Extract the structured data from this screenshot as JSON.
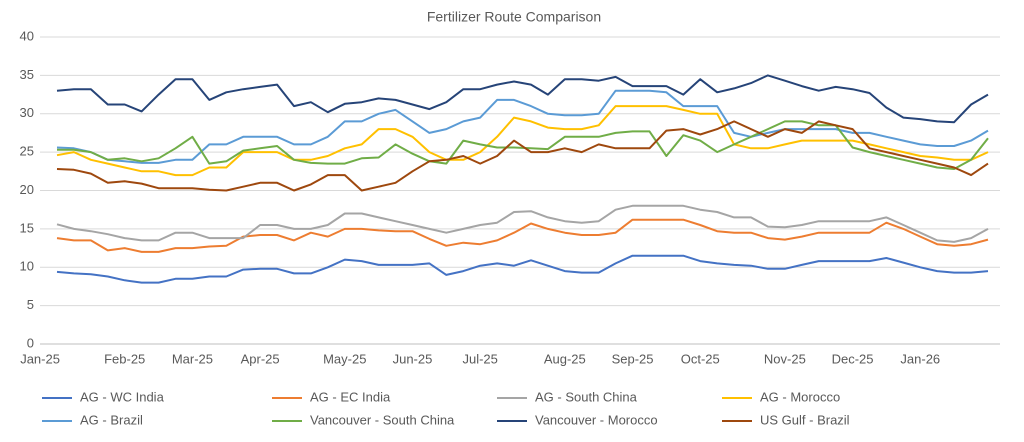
{
  "chart_data": {
    "type": "line",
    "title": "Fertilizer Route Comparison",
    "categories": [
      "Jan-25",
      null,
      null,
      null,
      null,
      "Feb-25",
      null,
      null,
      null,
      "Mar-25",
      null,
      null,
      null,
      "Apr-25",
      null,
      null,
      null,
      null,
      "May-25",
      null,
      null,
      null,
      "Jun-25",
      null,
      null,
      null,
      "Jul-25",
      null,
      null,
      null,
      null,
      "Aug-25",
      null,
      null,
      null,
      "Sep-25",
      null,
      null,
      null,
      "Oct-25",
      null,
      null,
      null,
      null,
      "Nov-25",
      null,
      null,
      null,
      "Dec-25",
      null,
      null,
      null,
      "Jan-26",
      null,
      null,
      null
    ],
    "ylim": [
      0,
      40
    ],
    "yticks": [
      0,
      5,
      10,
      15,
      20,
      25,
      30,
      35,
      40
    ],
    "grid": true,
    "series": [
      {
        "name": "AG - WC India",
        "color": "#4472c4",
        "values": [
          9.4,
          9.2,
          9.1,
          8.8,
          8.3,
          8,
          8,
          8.5,
          8.5,
          8.8,
          8.8,
          9.7,
          9.8,
          9.8,
          9.2,
          9.2,
          10,
          11,
          10.8,
          10.3,
          10.3,
          10.3,
          10.5,
          9,
          9.5,
          10.2,
          10.5,
          10.2,
          10.9,
          10.2,
          9.5,
          9.3,
          9.3,
          10.5,
          11.5,
          11.5,
          11.5,
          11.5,
          10.8,
          10.5,
          10.3,
          10.2,
          9.8,
          9.8,
          10.3,
          10.8,
          10.8,
          10.8,
          10.8,
          11.2,
          10.6,
          10,
          9.5,
          9.3,
          9.3,
          9.5
        ]
      },
      {
        "name": "AG - EC India",
        "color": "#ed7d31",
        "values": [
          13.8,
          13.5,
          13.5,
          12.2,
          12.5,
          12,
          12,
          12.5,
          12.5,
          12.7,
          12.8,
          14,
          14.2,
          14.2,
          13.5,
          14.5,
          14,
          15,
          15,
          14.8,
          14.7,
          14.7,
          13.7,
          12.8,
          13.2,
          13,
          13.5,
          14.5,
          15.7,
          15,
          14.5,
          14.2,
          14.2,
          14.5,
          16.2,
          16.2,
          16.2,
          16.2,
          15.5,
          14.7,
          14.5,
          14.5,
          13.8,
          13.6,
          14,
          14.5,
          14.5,
          14.5,
          14.5,
          15.8,
          15,
          14,
          13,
          12.8,
          13,
          13.6
        ]
      },
      {
        "name": "AG - South China",
        "color": "#a5a5a5",
        "values": [
          15.6,
          15,
          14.7,
          14.3,
          13.8,
          13.5,
          13.5,
          14.5,
          14.5,
          13.8,
          13.8,
          13.8,
          15.5,
          15.5,
          15,
          15,
          15.5,
          17,
          17,
          16.5,
          16,
          15.5,
          15,
          14.5,
          15,
          15.5,
          15.8,
          17.2,
          17.3,
          16.5,
          16,
          15.8,
          16,
          17.5,
          18,
          18,
          18,
          18,
          17.5,
          17.2,
          16.5,
          16.5,
          15.3,
          15.2,
          15.5,
          16,
          16,
          16,
          16,
          16.5,
          15.5,
          14.5,
          13.5,
          13.3,
          13.8,
          15
        ]
      },
      {
        "name": "AG - Morocco",
        "color": "#ffc000",
        "values": [
          24.6,
          25,
          24,
          23.5,
          23,
          22.5,
          22.5,
          22,
          22,
          23,
          23,
          25,
          25,
          25,
          24,
          24,
          24.5,
          25.5,
          26,
          28,
          28,
          27,
          25,
          24,
          24,
          25,
          27,
          29.5,
          29,
          28.2,
          28,
          28,
          28.5,
          31,
          31,
          31,
          31,
          30.5,
          30,
          30,
          26,
          25.5,
          25.5,
          26,
          26.5,
          26.5,
          26.5,
          26.5,
          26,
          25.5,
          25,
          24.5,
          24.3,
          24,
          24,
          25
        ]
      },
      {
        "name": "AG - Brazil",
        "color": "#5b9bd5",
        "values": [
          25.6,
          25.5,
          25,
          24,
          23.8,
          23.6,
          23.6,
          24,
          24,
          26,
          26,
          27,
          27,
          27,
          26,
          26,
          27,
          29,
          29,
          30,
          30.5,
          29,
          27.5,
          28,
          29,
          29.5,
          31.8,
          31.8,
          31,
          30,
          29.8,
          29.8,
          30,
          33,
          33,
          33,
          32.8,
          31,
          31,
          31,
          27.5,
          27,
          27.5,
          28,
          28,
          28,
          28,
          27.5,
          27.5,
          27,
          26.5,
          26,
          25.8,
          25.8,
          26.5,
          27.8
        ]
      },
      {
        "name": "Vancouver - South China",
        "color": "#70ad47",
        "values": [
          25.3,
          25.3,
          25,
          24,
          24.2,
          23.8,
          24.2,
          25.5,
          27,
          23.5,
          23.8,
          25.2,
          25.5,
          25.8,
          24,
          23.6,
          23.5,
          23.5,
          24.2,
          24.3,
          26,
          24.8,
          23.8,
          23.5,
          26.5,
          26,
          25.6,
          25.6,
          25.5,
          25.4,
          27,
          27,
          27,
          27.5,
          27.7,
          27.7,
          24.5,
          27.2,
          26.5,
          25,
          26,
          27,
          28,
          29,
          29,
          28.5,
          28.5,
          25.6,
          25,
          24.5,
          24,
          23.5,
          23,
          22.8,
          24,
          26.8
        ]
      },
      {
        "name": "Vancouver - Morocco",
        "color": "#264478",
        "values": [
          33,
          33.2,
          33.2,
          31.2,
          31.2,
          30.3,
          32.5,
          34.5,
          34.5,
          31.8,
          32.8,
          33.2,
          33.5,
          33.8,
          31,
          31.5,
          30.2,
          31.3,
          31.5,
          32,
          31.8,
          31.2,
          30.6,
          31.5,
          33.2,
          33.2,
          33.8,
          34.2,
          33.8,
          32.5,
          34.5,
          34.5,
          34.3,
          34.8,
          33.6,
          33.6,
          33.6,
          32.5,
          34.5,
          32.8,
          33.3,
          34,
          35,
          34.3,
          33.6,
          33,
          33.5,
          33.2,
          32.7,
          30.8,
          29.5,
          29.3,
          29,
          28.9,
          31.2,
          32.5
        ]
      },
      {
        "name": "US Gulf - Brazil",
        "color": "#9e480e",
        "values": [
          22.8,
          22.7,
          22.2,
          21,
          21.2,
          20.9,
          20.3,
          20.3,
          20.3,
          20.1,
          20,
          20.5,
          21,
          21,
          20,
          20.8,
          22,
          22,
          20,
          20.5,
          21,
          22.5,
          23.8,
          24,
          24.5,
          23.5,
          24.5,
          26.5,
          25,
          25,
          25.5,
          25,
          26,
          25.5,
          25.5,
          25.5,
          27.8,
          28,
          27.3,
          28,
          29,
          28,
          27,
          28,
          27.5,
          29,
          28.5,
          28,
          25.5,
          25,
          24.5,
          24,
          23.5,
          23,
          22,
          23.5
        ]
      }
    ]
  }
}
